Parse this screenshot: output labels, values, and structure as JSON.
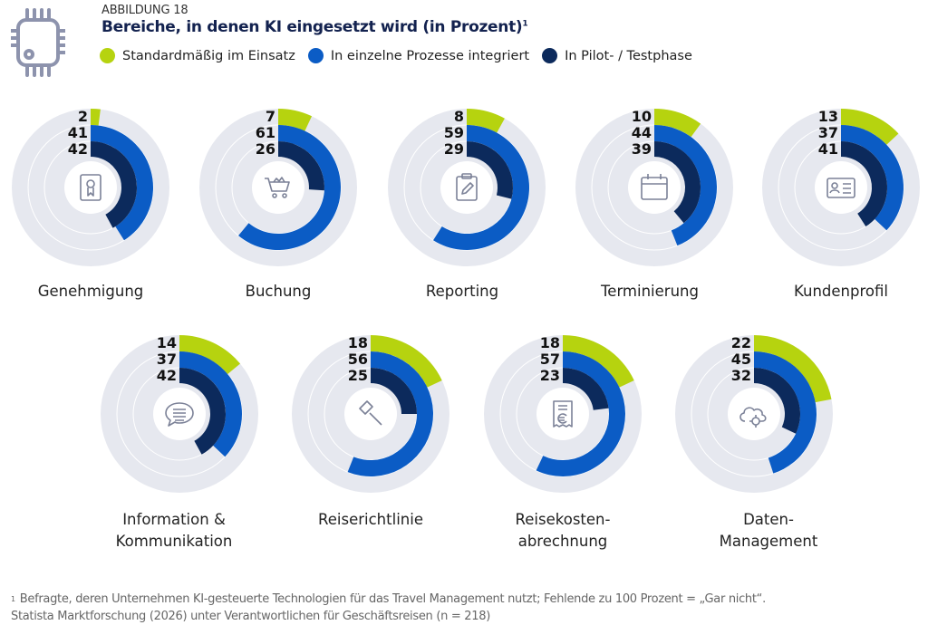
{
  "header": {
    "kicker": "ABBILDUNG 18",
    "title": "Bereiche, in denen KI eingesetzt wird (in Prozent)",
    "title_footnote_mark": "1",
    "icon": "chip-icon"
  },
  "colors": {
    "standard": "#b6d30f",
    "integriert": "#0b5cc5",
    "pilot": "#0c2a5c",
    "track": "#e6e8ef"
  },
  "chart_data": {
    "type": "radial-bar",
    "unit": "Prozent",
    "max": 100,
    "legend": [
      {
        "key": "standard",
        "name": "Standardmäßig im Einsatz"
      },
      {
        "key": "integriert",
        "name": "In einzelne Prozesse integriert"
      },
      {
        "key": "pilot",
        "name": "In Pilot- / Testphase"
      }
    ],
    "items": [
      {
        "label": "Genehmigung",
        "icon": "certificate-icon",
        "standard": 2,
        "integriert": 41,
        "pilot": 42
      },
      {
        "label": "Buchung",
        "icon": "shopping-cart-icon",
        "standard": 7,
        "integriert": 61,
        "pilot": 26
      },
      {
        "label": "Reporting",
        "icon": "clipboard-pencil-icon",
        "standard": 8,
        "integriert": 59,
        "pilot": 29
      },
      {
        "label": "Terminierung",
        "icon": "calendar-icon",
        "standard": 10,
        "integriert": 44,
        "pilot": 39
      },
      {
        "label": "Kundenprofil",
        "icon": "id-card-icon",
        "standard": 13,
        "integriert": 37,
        "pilot": 41
      },
      {
        "label": "Information &\nKommunikation",
        "icon": "speech-bubble-icon",
        "standard": 14,
        "integriert": 37,
        "pilot": 42
      },
      {
        "label": "Reiserichtlinie",
        "icon": "gavel-icon",
        "standard": 18,
        "integriert": 56,
        "pilot": 25
      },
      {
        "label": "Reisekosten-\nabrechnung",
        "icon": "euro-receipt-icon",
        "standard": 18,
        "integriert": 57,
        "pilot": 23
      },
      {
        "label": "Daten-\nManagement",
        "icon": "cloud-gear-icon",
        "standard": 22,
        "integriert": 45,
        "pilot": 32
      }
    ]
  },
  "footnote": {
    "mark": "1",
    "line1": "Befragte, deren Unternehmen KI-gesteuerte Technologien für das Travel Management nutzt; Fehlende zu 100 Prozent = „Gar nicht“.",
    "line2": "Statista Marktforschung (2026) unter Verantwortlichen für Geschäftsreisen (n = 218)"
  }
}
